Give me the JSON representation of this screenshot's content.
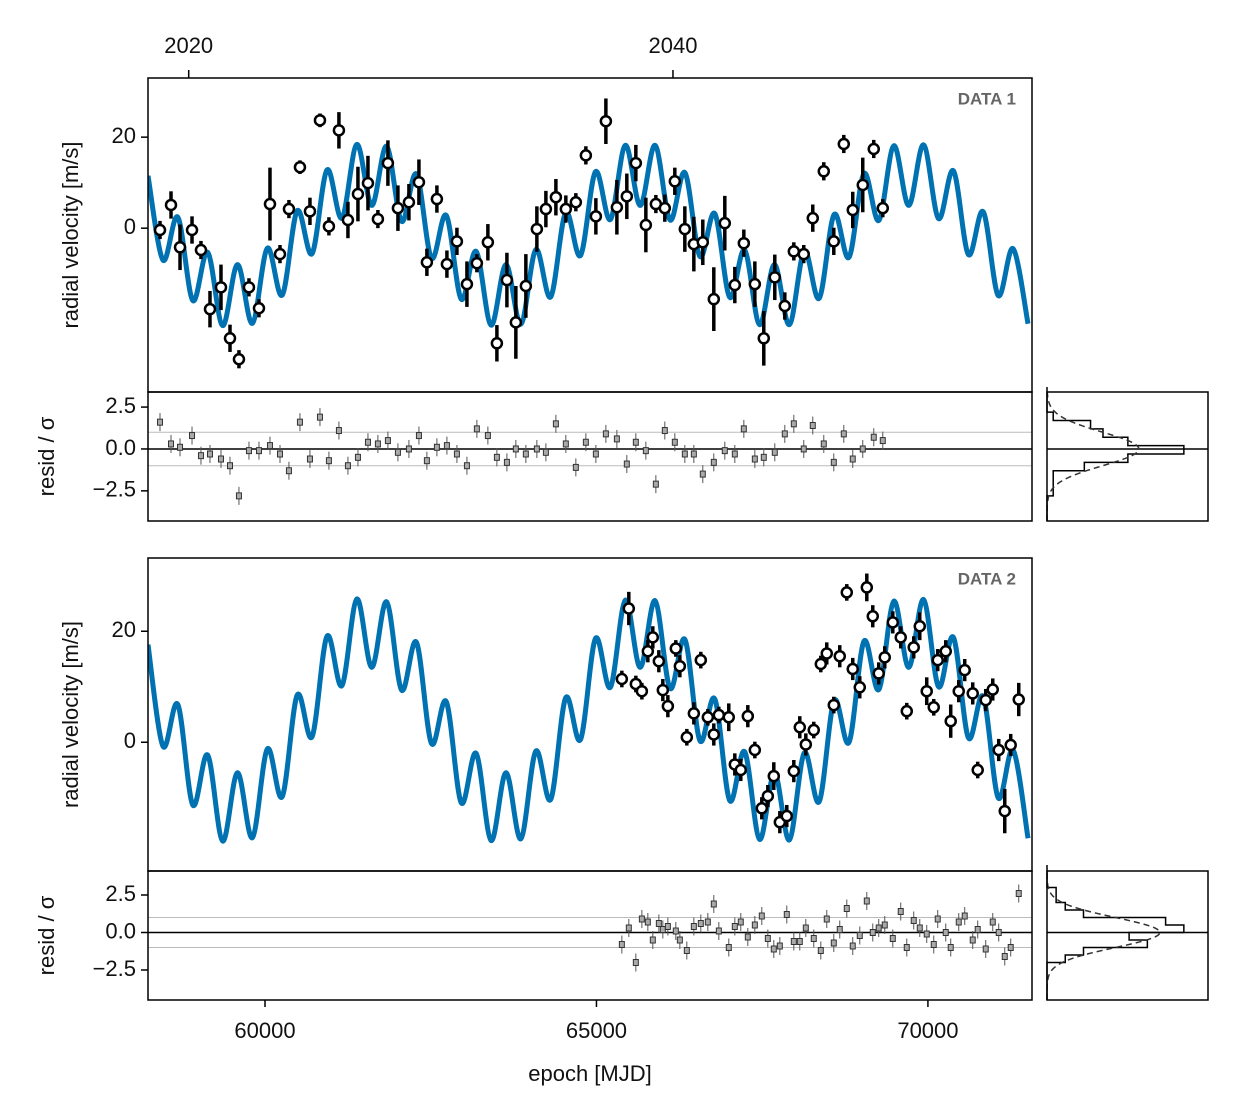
{
  "chart_data": [
    {
      "type": "scatter",
      "annotation": "DATA 1",
      "ylabel": "radial velocity [m/s]",
      "resid_label": "resid / σ",
      "xlim": [
        58235,
        71570
      ],
      "ylim": [
        -36,
        33
      ],
      "yticks": [
        0,
        20
      ],
      "x2ticks": [
        {
          "value": 58849,
          "label": "2020"
        },
        {
          "value": 66154,
          "label": "2040"
        }
      ],
      "x": [
        58416,
        58582,
        58718,
        58899,
        59034,
        59170,
        59336,
        59472,
        59607,
        59758,
        59909,
        60075,
        60226,
        60361,
        60527,
        60678,
        60829,
        60964,
        61115,
        61251,
        61402,
        61553,
        61703,
        61854,
        62005,
        62171,
        62322,
        62442,
        62593,
        62744,
        62895,
        63046,
        63196,
        63362,
        63498,
        63649,
        63784,
        63935,
        64101,
        64237,
        64388,
        64538,
        64689,
        64840,
        64991,
        65142,
        65308,
        65458,
        65594,
        65745,
        65896,
        66031,
        66182,
        66333,
        66469,
        66604,
        66770,
        66936,
        67087,
        67223,
        67389,
        67524,
        67690,
        67841,
        67977,
        68127,
        68263,
        68429,
        68580,
        68731,
        68866,
        69017,
        69183,
        69319
      ],
      "values": [
        -0.4,
        5.1,
        -4.2,
        -0.4,
        -4.8,
        -17.8,
        -13.0,
        -24.2,
        -28.8,
        -13.0,
        -17.6,
        5.3,
        -5.7,
        4.2,
        13.4,
        3.7,
        23.7,
        0.4,
        21.5,
        1.8,
        7.5,
        9.9,
        2.0,
        14.3,
        4.4,
        5.7,
        10.1,
        -7.5,
        6.4,
        -7.9,
        -2.9,
        -12.3,
        -7.7,
        -3.1,
        -25.3,
        -11.4,
        -20.7,
        -12.7,
        -0.2,
        4.2,
        6.8,
        4.2,
        5.7,
        16.0,
        2.6,
        23.5,
        4.6,
        7.0,
        14.3,
        0.7,
        5.3,
        4.4,
        10.3,
        -0.2,
        -3.5,
        -3.1,
        -15.6,
        1.1,
        -12.5,
        -3.3,
        -12.3,
        -24.2,
        -10.8,
        -17.1,
        -5.1,
        -5.7,
        2.2,
        12.5,
        -2.9,
        18.5,
        4.0,
        9.5,
        17.4,
        4.4
      ],
      "errors": [
        2,
        3,
        5,
        3,
        2,
        4,
        5,
        3,
        2,
        2,
        2,
        8,
        2,
        2,
        1.5,
        3,
        1.5,
        2,
        4,
        4,
        6,
        6,
        2,
        5,
        5,
        4,
        5,
        3,
        3,
        3,
        3,
        5,
        2,
        4,
        4,
        6,
        8,
        7,
        5,
        4,
        4,
        3,
        2,
        2,
        4,
        5,
        6,
        5,
        4,
        6,
        2,
        3,
        3,
        5,
        6,
        5,
        7,
        6,
        4,
        3,
        5,
        6,
        5,
        3,
        2,
        2,
        3,
        2,
        3,
        2,
        4,
        6,
        2,
        2
      ],
      "residuals": [
        1.6,
        0.3,
        0.1,
        0.8,
        -0.4,
        -0.3,
        -0.6,
        -1.0,
        -2.8,
        -0.1,
        -0.1,
        0.2,
        -0.3,
        -1.3,
        1.6,
        -0.6,
        1.9,
        -0.7,
        1.1,
        -1.0,
        -0.5,
        0.4,
        0.3,
        0.5,
        -0.2,
        0.0,
        0.8,
        -0.7,
        0.1,
        0.2,
        -0.3,
        -1.0,
        1.2,
        0.8,
        -0.5,
        -0.8,
        0.0,
        -0.3,
        0.0,
        -0.2,
        1.5,
        0.3,
        -1.1,
        0.4,
        -0.3,
        0.9,
        0.6,
        -0.9,
        0.4,
        -0.1,
        -2.1,
        1.1,
        0.4,
        -0.3,
        -0.3,
        -1.5,
        -0.8,
        -0.1,
        -0.3,
        1.2,
        -0.6,
        -0.5,
        -0.2,
        0.9,
        1.5,
        0.0,
        1.4,
        0.3,
        -0.8,
        0.9,
        -0.6,
        0.0,
        0.7,
        0.5
      ],
      "resid_ylim": [
        -4.3,
        3.4
      ],
      "resid_yticks": [
        2.5,
        {
          "value": 0,
          "label": "0.0"
        },
        {
          "value": -2.5,
          "label": "−2.5"
        }
      ],
      "resid_guides": [
        -1,
        1
      ],
      "model": {
        "color": "#0072b2",
        "x": [
          58235,
          58460,
          58685,
          58910,
          59135,
          59360,
          59585,
          59810,
          60035,
          60260,
          60485,
          60710,
          60935,
          61160,
          61385,
          61610,
          61835,
          62060,
          62285,
          62510,
          62735,
          62960,
          63185,
          63410,
          63635,
          63860,
          64085,
          64310,
          64535,
          64760,
          64985,
          65210,
          65435,
          65660,
          65885,
          66110,
          66335,
          66560,
          66785,
          67010,
          67235,
          67460,
          67685,
          67910,
          68135,
          68360,
          68585,
          68810,
          69035,
          69260,
          69485,
          69710,
          69935,
          70160,
          70385,
          70610,
          70835,
          71060,
          71285,
          71510
        ],
        "values": [
          11.5,
          -7.0,
          2.4,
          -15.9,
          -5.3,
          -21.4,
          -8.0,
          -20.9,
          -4.4,
          -14.7,
          3.8,
          -5.6,
          12.8,
          2.2,
          18.4,
          5.0,
          18.0,
          1.5,
          11.9,
          -6.6,
          2.8,
          -15.6,
          -5.1,
          -21.3,
          -8.0,
          -21.1,
          -4.7,
          -15.1,
          3.4,
          -6.0,
          12.4,
          1.9,
          18.2,
          5.0,
          18.2,
          1.8,
          12.2,
          -6.2,
          3.2,
          -15.2,
          -4.8,
          -21.2,
          -8.0,
          -21.2,
          -5.0,
          -15.4,
          3.0,
          -6.4,
          12.0,
          1.7,
          18.1,
          5.0,
          18.3,
          2.1,
          12.6,
          -5.8,
          3.6,
          -14.8,
          -4.5,
          -21.0
        ]
      }
    },
    {
      "type": "scatter",
      "annotation": "DATA 2",
      "ylabel": "radial velocity [m/s]",
      "resid_label": "resid / σ",
      "xlabel": "epoch [MJD]",
      "xlim": [
        58235,
        71570
      ],
      "ylim": [
        -23.2,
        33.2
      ],
      "yticks": [
        0,
        20
      ],
      "xticks": [
        60000,
        65000,
        70000
      ],
      "x": [
        65383,
        65488,
        65594,
        65685,
        65775,
        65850,
        65941,
        66001,
        66077,
        66197,
        66258,
        66363,
        66469,
        66574,
        66680,
        66770,
        66846,
        66996,
        67087,
        67177,
        67283,
        67389,
        67494,
        67585,
        67675,
        67766,
        67871,
        67977,
        68067,
        68158,
        68278,
        68384,
        68474,
        68580,
        68670,
        68776,
        68866,
        68972,
        69078,
        69168,
        69258,
        69349,
        69470,
        69590,
        69681,
        69786,
        69877,
        69982,
        70088,
        70148,
        70269,
        70344,
        70465,
        70555,
        70676,
        70751,
        70872,
        70978,
        71068,
        71159,
        71249,
        71370
      ],
      "values": [
        11.4,
        24.1,
        10.5,
        9.2,
        16.4,
        18.9,
        14.6,
        9.4,
        6.5,
        16.9,
        13.7,
        0.9,
        5.2,
        14.8,
        4.5,
        1.4,
        4.9,
        4.5,
        -4.0,
        -5.0,
        4.7,
        -1.4,
        -11.9,
        -9.7,
        -6.1,
        -14.4,
        -13.3,
        -5.2,
        2.7,
        -0.4,
        2.2,
        14.1,
        16.0,
        6.7,
        15.5,
        27.0,
        13.2,
        9.9,
        27.9,
        22.7,
        12.4,
        15.3,
        21.6,
        18.9,
        5.6,
        17.1,
        20.9,
        9.2,
        6.3,
        14.8,
        16.4,
        3.8,
        9.2,
        13.0,
        8.8,
        -5.0,
        7.6,
        9.5,
        -1.4,
        -12.4,
        -0.5,
        7.7
      ],
      "errors": [
        1.5,
        3,
        1.5,
        1.5,
        2,
        2,
        2,
        2,
        2,
        1.5,
        2,
        1.5,
        2,
        1.5,
        1.5,
        2,
        1.5,
        2.5,
        2,
        2,
        2,
        1.5,
        2,
        2,
        2.5,
        2,
        2,
        2,
        2,
        2,
        1.5,
        1.5,
        2,
        1.5,
        2,
        1.5,
        2,
        2,
        2.5,
        2,
        2,
        2,
        2,
        2,
        1.5,
        2,
        2.5,
        2.5,
        1.5,
        2,
        2,
        3,
        2,
        2,
        2,
        1.5,
        2,
        2,
        2,
        4,
        2,
        3
      ],
      "residuals": [
        -0.8,
        0.3,
        -2.0,
        0.9,
        0.7,
        -0.5,
        0.6,
        0.2,
        0.4,
        0.1,
        -0.5,
        -1.2,
        0.4,
        0.6,
        0.7,
        1.9,
        0.1,
        -1.0,
        0.4,
        0.7,
        -0.3,
        0.5,
        1.1,
        -0.4,
        -1.1,
        -0.9,
        1.2,
        -0.6,
        -0.6,
        0.3,
        -0.4,
        -1.2,
        0.9,
        -0.7,
        0.2,
        1.6,
        -0.9,
        -0.2,
        2.1,
        0.0,
        0.3,
        0.5,
        -0.4,
        1.4,
        -1.0,
        0.8,
        0.3,
        -0.1,
        -0.8,
        0.9,
        0.0,
        -1.0,
        0.7,
        1.1,
        -0.5,
        0.2,
        -1.1,
        0.7,
        0.0,
        -1.6,
        -1.0,
        2.6
      ],
      "resid_ylim": [
        -4.5,
        4.1
      ],
      "resid_yticks": [
        2.5,
        {
          "value": 0,
          "label": "0.0"
        },
        {
          "value": -2.5,
          "label": "−2.5"
        }
      ],
      "resid_guides": [
        -1,
        1
      ],
      "model": {
        "color": "#0072b2",
        "x": [
          58235,
          58460,
          58685,
          58910,
          59135,
          59360,
          59585,
          59810,
          60035,
          60260,
          60485,
          60710,
          60935,
          61160,
          61385,
          61610,
          61835,
          62060,
          62285,
          62510,
          62735,
          62960,
          63185,
          63410,
          63635,
          63860,
          64085,
          64310,
          64535,
          64760,
          64985,
          65210,
          65435,
          65660,
          65885,
          66110,
          66335,
          66560,
          66785,
          67010,
          67235,
          67460,
          67685,
          67910,
          68135,
          68360,
          68585,
          68810,
          69035,
          69260,
          69485,
          69710,
          69935,
          70160,
          70385,
          70610,
          70835,
          71060,
          71285,
          71510
        ],
        "values": [
          17.6,
          -0.7,
          6.8,
          -11.3,
          -2.3,
          -17.8,
          -5.5,
          -17.2,
          -1.2,
          -9.8,
          8.5,
          1.0,
          19.1,
          10.2,
          25.8,
          13.5,
          25.3,
          9.4,
          18.0,
          -0.2,
          7.3,
          -10.9,
          -2.0,
          -17.7,
          -5.5,
          -17.4,
          -1.6,
          -10.3,
          8.0,
          0.5,
          18.7,
          9.9,
          25.6,
          13.5,
          25.5,
          9.7,
          18.5,
          0.3,
          7.8,
          -10.5,
          -1.7,
          -17.5,
          -5.5,
          -17.6,
          -1.9,
          -10.7,
          7.5,
          0.0,
          18.2,
          9.5,
          25.4,
          13.5,
          25.7,
          10.0,
          18.9,
          0.8,
          8.2,
          -10.0,
          -1.4,
          -17.3
        ]
      }
    }
  ]
}
